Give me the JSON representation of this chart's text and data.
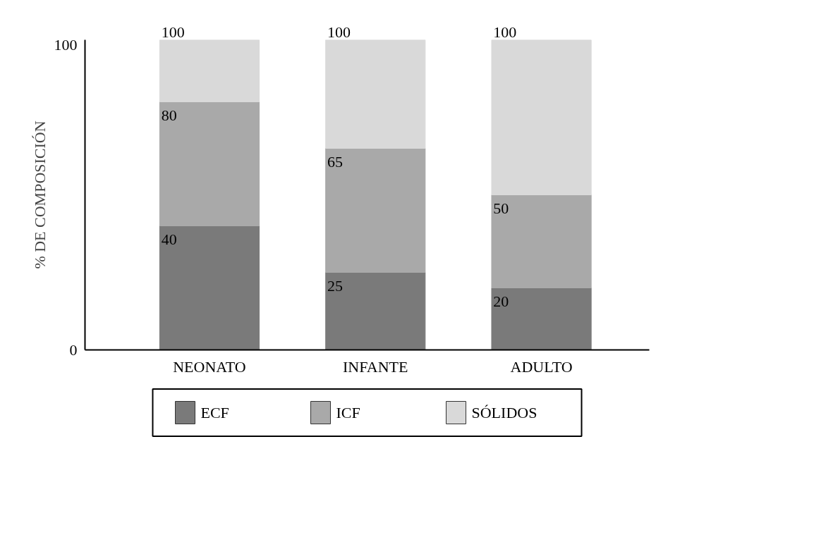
{
  "chart_data": {
    "type": "bar",
    "stacked": true,
    "ylabel": "% DE COMPOSICIÓN",
    "categories": [
      "NEONATO",
      "INFANTE",
      "ADULTO"
    ],
    "series": [
      {
        "name": "ECF",
        "color": "#7a7a7a",
        "values": [
          40,
          25,
          20
        ],
        "value_labels": [
          "40",
          "25",
          "20"
        ]
      },
      {
        "name": "ICF",
        "color": "#a9a9a9",
        "values": [
          40,
          40,
          30
        ]
      },
      {
        "name": "SÓLIDOS",
        "color": "#d9d9d9",
        "values": [
          20,
          35,
          50
        ]
      }
    ],
    "annotations": [
      {
        "text": "80",
        "x": "NEONATO",
        "y": 80
      },
      {
        "text": "65",
        "x": "INFANTE",
        "y": 65
      },
      {
        "text": "50",
        "x": "ADULTO",
        "y": 50
      }
    ],
    "totals": [
      "100",
      "100",
      "100"
    ],
    "ylim": [
      0,
      100
    ],
    "yticks": [
      0,
      100
    ],
    "legend": "bottom"
  }
}
